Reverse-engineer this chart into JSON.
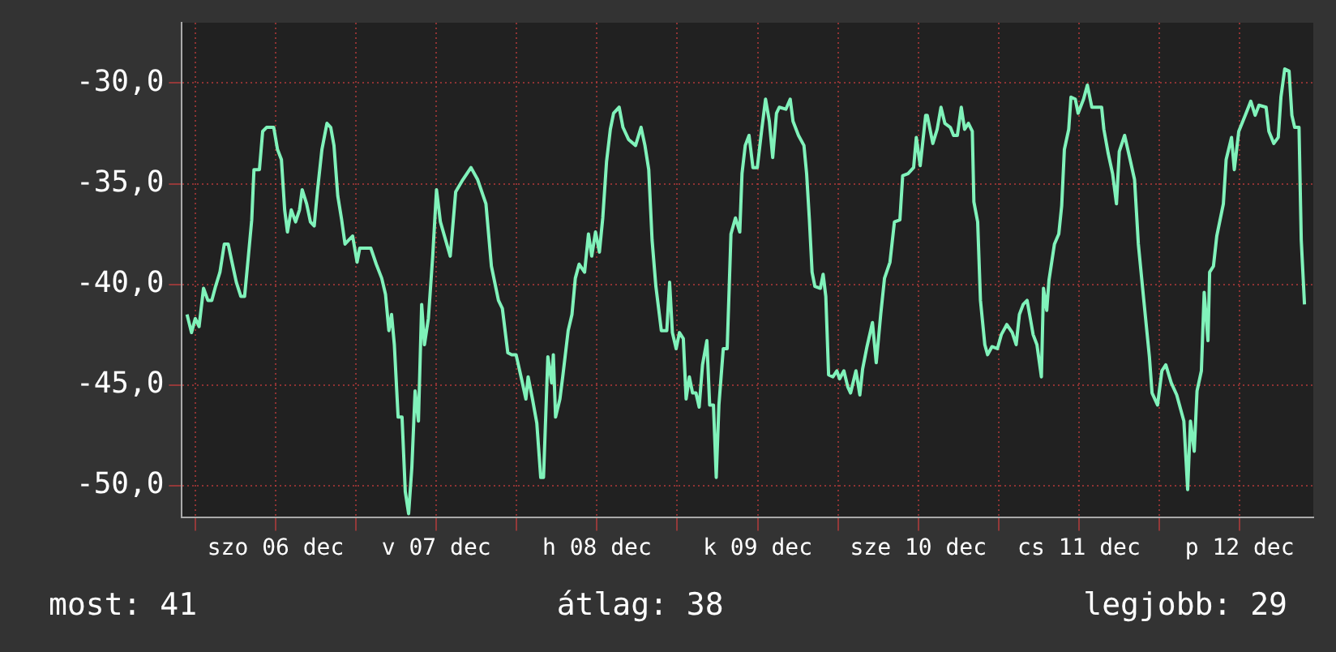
{
  "chart_data": {
    "type": "line",
    "color": "#80f2ba",
    "x": [
      "--12-05T22:46",
      "--12-05T23:26",
      "--12-06T00:00",
      "--12-06T00:34",
      "--12-06T01:14",
      "--12-06T01:53",
      "--12-06T02:28",
      "--12-06T03:02",
      "--12-06T03:41",
      "--12-06T04:20",
      "--12-06T04:55",
      "--12-06T05:29",
      "--12-06T06:08",
      "--12-06T06:48",
      "--12-06T07:22",
      "--12-06T07:56",
      "--12-06T08:26",
      "--12-06T08:46",
      "--12-06T09:35",
      "--12-06T10:04",
      "--12-06T10:39",
      "--12-06T11:43",
      "--12-06T12:17",
      "--12-06T12:52",
      "--12-06T13:21",
      "--12-06T13:46",
      "--12-06T14:20",
      "--12-06T14:59",
      "--12-06T15:34",
      "--12-06T15:58",
      "--12-06T16:38",
      "--12-06T17:12",
      "--12-06T17:46",
      "--12-06T18:16",
      "--12-06T18:55",
      "--12-06T19:40",
      "--12-06T20:14",
      "--12-06T20:43",
      "--12-06T21:17",
      "--12-06T21:52",
      "--12-06T22:22",
      "--12-06T22:56",
      "--12-06T23:30",
      "--12-07T00:10",
      "--12-07T00:34",
      "--12-07T02:13",
      "--12-07T03:02",
      "--12-07T03:51",
      "--12-07T04:25",
      "--12-07T04:55",
      "--12-07T05:19",
      "--12-07T05:44",
      "--12-07T06:18",
      "--12-07T06:53",
      "--12-07T07:22",
      "--12-07T07:52",
      "--12-07T08:21",
      "--12-07T08:50",
      "--12-07T09:20",
      "--12-07T09:49",
      "--12-07T10:14",
      "--12-07T10:49",
      "--12-07T11:28",
      "--12-07T12:02",
      "--12-07T12:37",
      "--12-07T14:05",
      "--12-07T14:54",
      "--12-07T15:58",
      "--12-07T17:11",
      "--12-07T18:11",
      "--12-07T19:25",
      "--12-07T20:14",
      "--12-07T21:17",
      "--12-07T21:52",
      "--12-07T22:41",
      "--12-07T23:16",
      "--12-07T23:55",
      "--12-08T00:44",
      "--12-08T01:23",
      "--12-08T01:43",
      "--12-08T02:22",
      "--12-08T03:01",
      "--12-08T03:36",
      "--12-08T04:01",
      "--12-08T04:40",
      "--12-08T05:14",
      "--12-08T05:29",
      "--12-08T05:49",
      "--12-08T06:28",
      "--12-08T06:53",
      "--12-08T07:42",
      "--12-08T08:16",
      "--12-08T08:46",
      "--12-08T09:20",
      "--12-08T10:09",
      "--12-08T10:44",
      "--12-08T11:13",
      "--12-08T11:47",
      "--12-08T12:22",
      "--12-08T12:52",
      "--12-08T13:26",
      "--12-08T14:00",
      "--12-08T14:29",
      "--12-08T15:19",
      "--12-08T15:53",
      "--12-08T16:43",
      "--12-08T17:46",
      "--12-08T18:35",
      "--12-08T19:10",
      "--12-08T19:44",
      "--12-08T20:14",
      "--12-08T20:48",
      "--12-08T21:37",
      "--12-08T22:26",
      "--12-08T22:51",
      "--12-08T23:16",
      "--12-08T23:50",
      "--12-09T00:19",
      "--12-09T00:54",
      "--12-09T01:19",
      "--12-09T01:48",
      "--12-09T02:17",
      "--12-09T02:47",
      "--12-09T03:16",
      "--12-09T03:46",
      "--12-09T04:25",
      "--12-09T04:50",
      "--12-09T05:24",
      "--12-09T05:49",
      "--12-09T06:13",
      "--12-09T06:52",
      "--12-09T07:27",
      "--12-09T08:01",
      "--12-09T08:41",
      "--12-09T09:20",
      "--12-09T09:40",
      "--12-09T10:09",
      "--12-09T10:43",
      "--12-09T11:18",
      "--12-09T11:57",
      "--12-09T12:37",
      "--12-09T13:11",
      "--12-09T13:45",
      "--12-09T14:15",
      "--12-09T14:49",
      "--12-09T15:14",
      "--12-09T16:13",
      "--12-09T16:52",
      "--12-09T17:17",
      "--12-09T18:06",
      "--12-09T18:55",
      "--12-09T19:19",
      "--12-09T19:44",
      "--12-09T20:08",
      "--12-09T20:33",
      "--12-09T21:22",
      "--12-09T21:47",
      "--12-09T22:11",
      "--12-09T22:36",
      "--12-09T23:15",
      "--12-09T23:50",
      "--12-10T00:14",
      "--12-10T00:53",
      "--12-10T01:28",
      "--12-10T01:53",
      "--12-10T02:41",
      "--12-10T03:16",
      "--12-10T03:41",
      "--12-10T04:20",
      "--12-10T05:09",
      "--12-10T05:43",
      "--12-10T06:23",
      "--12-10T06:57",
      "--12-10T07:46",
      "--12-10T08:26",
      "--12-10T09:15",
      "--12-10T09:40",
      "--12-10T10:28",
      "--12-10T11:18",
      "--12-10T11:42",
      "--12-10T12:17",
      "--12-10T13:06",
      "--12-10T13:20",
      "--12-10T14:10",
      "--12-10T14:49",
      "--12-10T15:23",
      "--12-10T15:58",
      "--12-10T16:47",
      "--12-10T17:16",
      "--12-10T17:50",
      "--12-10T18:25",
      "--12-10T18:55",
      "--12-10T19:29",
      "--12-10T20:04",
      "--12-10T20:18",
      "--12-10T20:52",
      "--12-10T21:17",
      "--12-10T21:56",
      "--12-10T22:21",
      "--12-10T23:00",
      "--12-10T23:49",
      "--12-11T00:24",
      "--12-11T01:13",
      "--12-11T02:02",
      "--12-11T02:37",
      "--12-11T03:06",
      "--12-11T03:40",
      "--12-11T04:15",
      "--12-11T04:44",
      "--12-11T05:09",
      "--12-11T05:43",
      "--12-11T06:23",
      "--12-11T06:42",
      "--12-11T07:11",
      "--12-11T07:31",
      "--12-11T08:20",
      "--12-11T08:59",
      "--12-11T09:25",
      "--12-11T09:49",
      "--12-11T10:28",
      "--12-11T10:48",
      "--12-11T11:27",
      "--12-11T11:52",
      "--12-11T12:41",
      "--12-11T13:15",
      "--12-11T13:55",
      "--12-11T15:23",
      "--12-11T15:43",
      "--12-11T16:22",
      "--12-11T17:01",
      "--12-11T17:36",
      "--12-11T18:01",
      "--12-11T18:49",
      "--12-11T19:38",
      "--12-11T20:18",
      "--12-11T20:52",
      "--12-11T21:41",
      "--12-11T22:31",
      "--12-11T22:55",
      "--12-11T23:44",
      "--12-12T00:23",
      "--12-12T00:58",
      "--12-12T01:47",
      "--12-12T02:36",
      "--12-12T03:40",
      "--12-12T04:14",
      "--12-12T04:39",
      "--12-12T05:13",
      "--12-12T05:38",
      "--12-12T06:17",
      "--12-12T06:42",
      "--12-12T07:16",
      "--12-12T07:31",
      "--12-12T08:05",
      "--12-12T08:35",
      "--12-12T09:34",
      "--12-12T09:59",
      "--12-12T10:47",
      "--12-12T11:12",
      "--12-12T11:52",
      "--12-12T12:50",
      "--12-12T13:40",
      "--12-12T14:19",
      "--12-12T14:53",
      "--12-12T15:57",
      "--12-12T16:22",
      "--12-12T17:06",
      "--12-12T17:46",
      "--12-12T18:10",
      "--12-12T18:44",
      "--12-12T19:23",
      "--12-12T19:48",
      "--12-12T20:13",
      "--12-12T20:52",
      "--12-12T21:12",
      "--12-12T21:41"
    ],
    "values": [
      -41.5,
      -42.4,
      -41.7,
      -42.1,
      -40.2,
      -40.8,
      -40.8,
      -40.1,
      -39.4,
      -38.0,
      -38.0,
      -38.9,
      -39.9,
      -40.6,
      -40.6,
      -38.6,
      -36.8,
      -34.3,
      -34.3,
      -32.4,
      -32.2,
      -32.2,
      -33.3,
      -33.8,
      -36.3,
      -37.4,
      -36.3,
      -36.9,
      -36.3,
      -35.3,
      -36.0,
      -36.9,
      -37.1,
      -35.3,
      -33.3,
      -32.0,
      -32.2,
      -33.1,
      -35.6,
      -36.8,
      -38.0,
      -37.8,
      -37.6,
      -38.9,
      -38.2,
      -38.2,
      -39.0,
      -39.7,
      -40.5,
      -42.3,
      -41.5,
      -43.0,
      -46.6,
      -46.6,
      -50.3,
      -51.4,
      -49.1,
      -45.3,
      -46.8,
      -41.0,
      -43.0,
      -41.7,
      -38.6,
      -35.3,
      -36.9,
      -38.6,
      -35.4,
      -34.8,
      -34.2,
      -34.8,
      -36.0,
      -39.1,
      -40.8,
      -41.2,
      -43.4,
      -43.5,
      -43.5,
      -44.7,
      -45.7,
      -44.6,
      -45.7,
      -46.9,
      -49.6,
      -49.6,
      -43.6,
      -44.9,
      -43.5,
      -46.6,
      -45.7,
      -44.6,
      -42.3,
      -41.5,
      -39.7,
      -39.0,
      -39.4,
      -37.5,
      -38.6,
      -37.4,
      -38.4,
      -36.7,
      -33.9,
      -32.3,
      -31.5,
      -31.2,
      -32.2,
      -32.8,
      -33.1,
      -32.2,
      -33.1,
      -34.3,
      -37.8,
      -40.1,
      -42.3,
      -42.3,
      -39.9,
      -42.4,
      -43.2,
      -42.4,
      -42.7,
      -45.7,
      -44.6,
      -45.4,
      -45.4,
      -46.1,
      -44.0,
      -42.8,
      -46.0,
      -46.0,
      -49.6,
      -46.0,
      -43.2,
      -43.2,
      -37.5,
      -36.7,
      -37.4,
      -34.5,
      -33.1,
      -32.6,
      -34.2,
      -34.2,
      -32.3,
      -30.8,
      -31.9,
      -33.7,
      -31.5,
      -31.2,
      -31.3,
      -30.8,
      -31.9,
      -32.6,
      -33.1,
      -34.5,
      -36.8,
      -39.4,
      -40.1,
      -40.2,
      -39.5,
      -40.6,
      -44.5,
      -44.6,
      -44.3,
      -44.7,
      -44.3,
      -45.1,
      -45.4,
      -44.3,
      -45.5,
      -44.2,
      -43.1,
      -41.9,
      -43.9,
      -41.5,
      -39.7,
      -38.9,
      -36.9,
      -36.8,
      -34.6,
      -34.5,
      -34.2,
      -32.7,
      -34.1,
      -31.6,
      -31.6,
      -33.0,
      -32.3,
      -31.2,
      -32.0,
      -32.2,
      -32.6,
      -32.6,
      -31.2,
      -32.3,
      -32.0,
      -32.4,
      -35.9,
      -36.9,
      -40.8,
      -43.0,
      -43.5,
      -43.1,
      -43.2,
      -42.5,
      -42.0,
      -42.4,
      -43.0,
      -41.5,
      -41.0,
      -40.8,
      -41.7,
      -42.5,
      -43.0,
      -44.6,
      -40.2,
      -41.3,
      -39.8,
      -38.0,
      -37.5,
      -36.1,
      -33.3,
      -32.3,
      -30.7,
      -30.8,
      -31.5,
      -30.8,
      -30.1,
      -31.2,
      -31.2,
      -32.3,
      -33.5,
      -34.5,
      -36.0,
      -33.4,
      -32.6,
      -33.8,
      -34.8,
      -38.0,
      -40.8,
      -43.6,
      -45.4,
      -46.0,
      -44.3,
      -44.0,
      -44.9,
      -45.5,
      -46.8,
      -50.2,
      -46.8,
      -48.3,
      -45.3,
      -44.3,
      -40.4,
      -42.8,
      -39.4,
      -39.1,
      -37.6,
      -36.0,
      -33.8,
      -32.7,
      -34.3,
      -32.4,
      -31.6,
      -30.9,
      -31.6,
      -31.1,
      -31.2,
      -32.4,
      -33.0,
      -32.7,
      -30.7,
      -29.3,
      -29.4,
      -31.6,
      -32.2,
      -32.2,
      -37.8,
      -41.0
    ],
    "xlim": [
      "--12-05T22:00",
      "--12-12T23:00"
    ],
    "xticks": [
      {
        "value": "--12-06T00:00",
        "label": null
      },
      {
        "value": "--12-06T12:00",
        "label": "szo 06 dec"
      },
      {
        "value": "--12-07T00:00",
        "label": null
      },
      {
        "value": "--12-07T12:00",
        "label": "v 07 dec"
      },
      {
        "value": "--12-08T00:00",
        "label": null
      },
      {
        "value": "--12-08T12:00",
        "label": "h 08 dec"
      },
      {
        "value": "--12-09T00:00",
        "label": null
      },
      {
        "value": "--12-09T12:00",
        "label": "k 09 dec"
      },
      {
        "value": "--12-10T00:00",
        "label": null
      },
      {
        "value": "--12-10T12:00",
        "label": "sze 10 dec"
      },
      {
        "value": "--12-11T00:00",
        "label": null
      },
      {
        "value": "--12-11T12:00",
        "label": "cs 11 dec"
      },
      {
        "value": "--12-12T00:00",
        "label": null
      },
      {
        "value": "--12-12T12:00",
        "label": "p 12 dec"
      }
    ],
    "ylim": [
      -51.6,
      -27
    ],
    "yticks": [
      {
        "value": -50,
        "label": "-50,0"
      },
      {
        "value": -45,
        "label": "-45,0"
      },
      {
        "value": -40,
        "label": "-40,0"
      },
      {
        "value": -35,
        "label": "-35,0"
      },
      {
        "value": -30,
        "label": "-30,0"
      }
    ],
    "grid": true,
    "marker": "none",
    "line_style": "solid",
    "annotations": [
      "most: 41",
      "átlag: 38",
      "legjobb: 29"
    ]
  }
}
